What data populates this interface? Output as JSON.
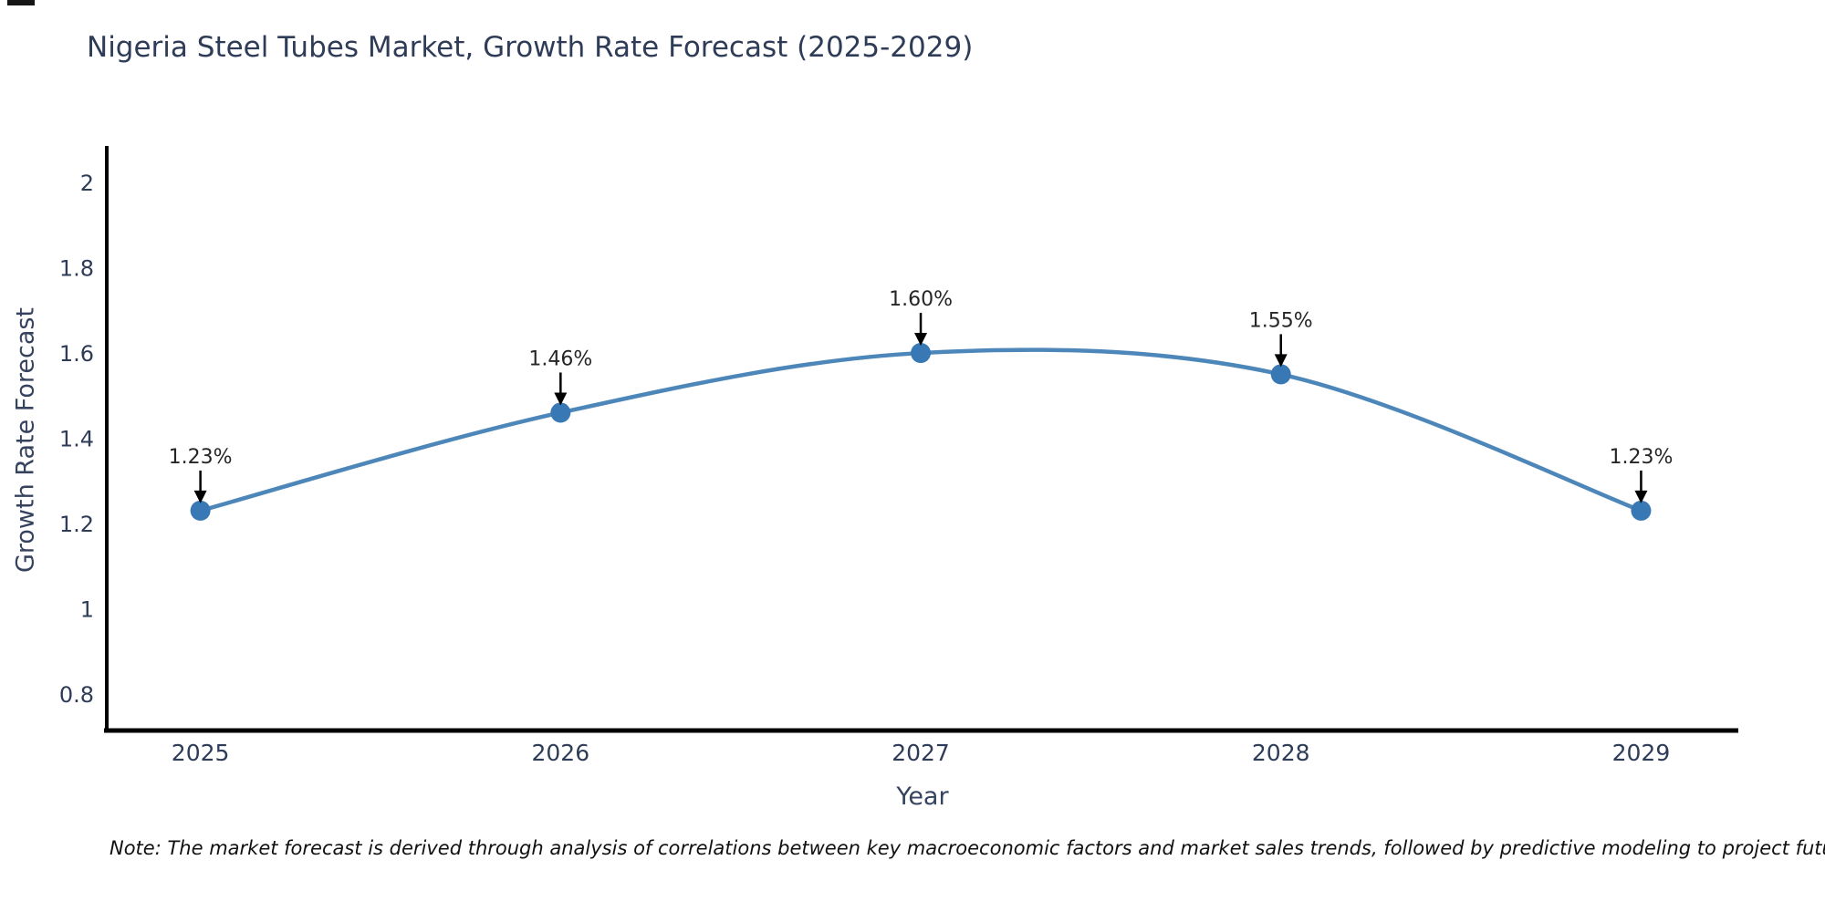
{
  "title": "Nigeria Steel Tubes Market, Growth Rate Forecast (2025-2029)",
  "note": "Note: The market forecast is derived through analysis of correlations between key macroeconomic factors and market sales trends, followed by predictive modeling to project future sales",
  "chart_data": {
    "type": "line",
    "title": "Nigeria Steel Tubes Market, Growth Rate Forecast (2025-2029)",
    "xlabel": "Year",
    "ylabel": "Growth Rate Forecast",
    "x": [
      2025,
      2026,
      2027,
      2028,
      2029
    ],
    "series": [
      {
        "name": "Growth Rate Forecast",
        "values": [
          1.23,
          1.46,
          1.6,
          1.55,
          1.23
        ]
      }
    ],
    "point_labels": [
      "1.23%",
      "1.46%",
      "1.60%",
      "1.55%",
      "1.23%"
    ],
    "xtick_labels": [
      "2025",
      "2026",
      "2027",
      "2028",
      "2029"
    ],
    "ytick_labels": [
      "0.8",
      "1",
      "1.2",
      "1.4",
      "1.6",
      "1.8",
      "2"
    ],
    "ytick_values": [
      0.8,
      1.0,
      1.2,
      1.4,
      1.6,
      1.8,
      2.0
    ],
    "xlim": [
      2024.74,
      2029.27
    ],
    "ylim": [
      0.714,
      2.086
    ],
    "grid": false,
    "legend": "none",
    "line_style": "smooth-spline",
    "annotations": "value labels with downward arrows above each point",
    "colors": {
      "line": "#4d87b9",
      "marker": "#3878b5",
      "axis": "#000000",
      "heading_text": "#2e3c58",
      "tick_text": "#2e3c58",
      "annotation_text": "#262626",
      "arrow": "#000000",
      "note_text": "#111111"
    }
  }
}
